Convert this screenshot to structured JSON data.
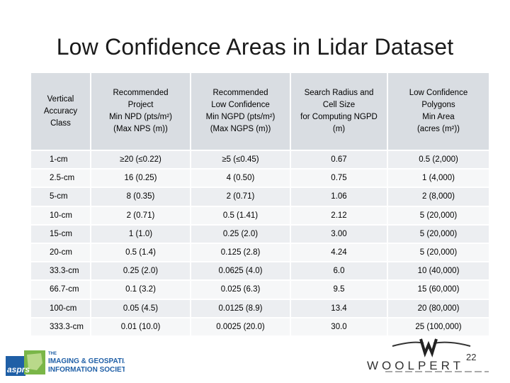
{
  "slide": {
    "title": "Low Confidence Areas in Lidar Dataset",
    "page_number": "22"
  },
  "table": {
    "headers": [
      "Vertical\nAccuracy\nClass",
      "Recommended\nProject\nMin NPD (pts/m²)\n(Max NPS (m))",
      "Recommended\nLow Confidence\nMin NGPD (pts/m²)\n(Max NGPS (m))",
      "Search Radius and\nCell Size\nfor Computing NGPD\n(m)",
      "Low Confidence\nPolygons\nMin Area\n(acres (m²))"
    ],
    "rows": [
      [
        "1-cm",
        "≥20 (≤0.22)",
        "≥5 (≤0.45)",
        "0.67",
        "0.5 (2,000)"
      ],
      [
        "2.5-cm",
        "16 (0.25)",
        "4 (0.50)",
        "0.75",
        "1 (4,000)"
      ],
      [
        "5-cm",
        "8 (0.35)",
        "2 (0.71)",
        "1.06",
        "2 (8,000)"
      ],
      [
        "10-cm",
        "2 (0.71)",
        "0.5 (1.41)",
        "2.12",
        "5 (20,000)"
      ],
      [
        "15-cm",
        "1 (1.0)",
        "0.25 (2.0)",
        "3.00",
        "5 (20,000)"
      ],
      [
        "20-cm",
        "0.5 (1.4)",
        "0.125 (2.8)",
        "4.24",
        "5 (20,000)"
      ],
      [
        "33.3-cm",
        "0.25 (2.0)",
        "0.0625 (4.0)",
        "6.0",
        "10 (40,000)"
      ],
      [
        "66.7-cm",
        "0.1 (3.2)",
        "0.025 (6.3)",
        "9.5",
        "15 (60,000)"
      ],
      [
        "100-cm",
        "0.05 (4.5)",
        "0.0125 (8.9)",
        "13.4",
        "20 (80,000)"
      ],
      [
        "333.3-cm",
        "0.01 (10.0)",
        "0.0025 (20.0)",
        "30.0",
        "25 (100,000)"
      ]
    ]
  },
  "logos": {
    "asprs": {
      "word": "asprs",
      "line1": "THE",
      "line2": "IMAGING & GEOSPATIAL",
      "line3": "INFORMATION SOCIETY"
    },
    "woolpert": {
      "word": "WOOLPERT"
    }
  },
  "colors": {
    "header_bg": "#d9dde2",
    "row_odd": "#eceef1",
    "row_even": "#f6f7f8",
    "asprs_blue": "#1f5fa6",
    "asprs_green": "#7ab648"
  }
}
